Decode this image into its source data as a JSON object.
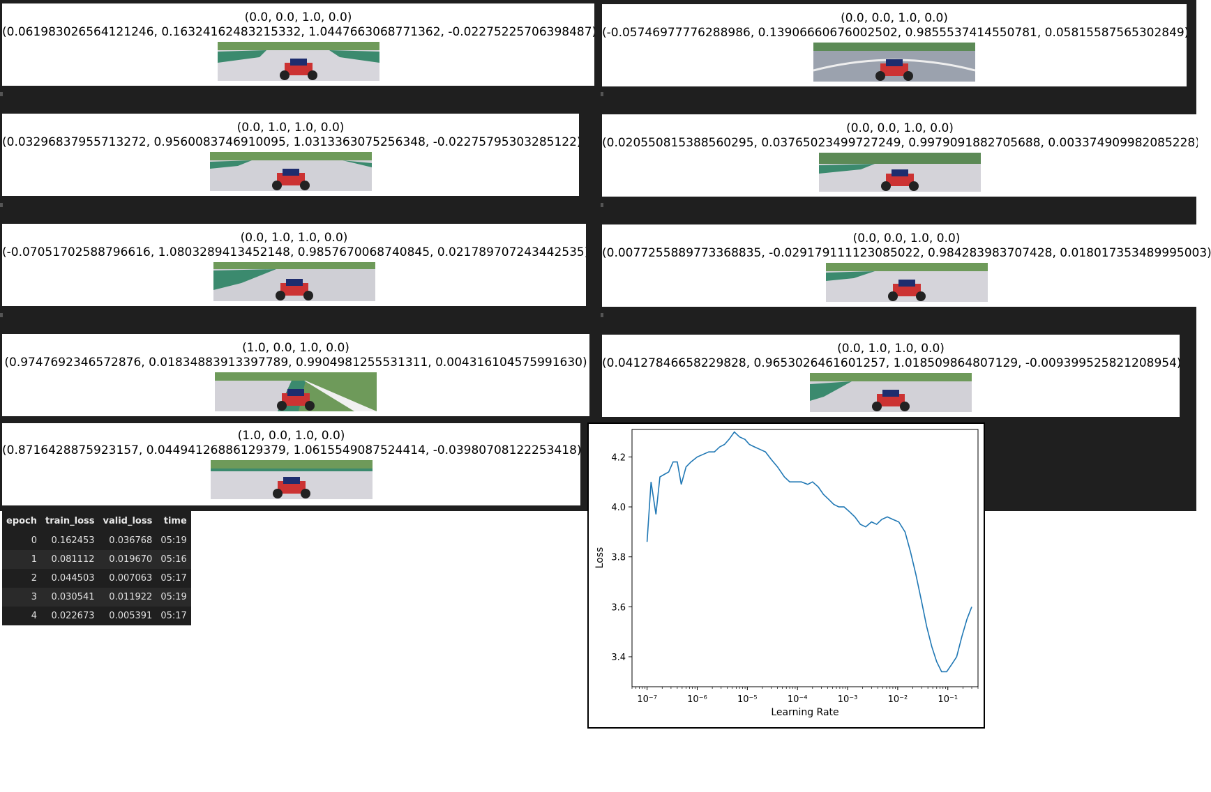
{
  "cells": [
    {
      "action": "(0.0, 0.0, 1.0, 0.0)",
      "pred": "(0.061983026564121246, 0.16324162483215332, 1.0447663068771362, -0.02275225706398487)"
    },
    {
      "action": "(0.0, 0.0, 1.0, 0.0)",
      "pred": "(-0.05746977776288986, 0.13906660676002502, 0.9855537414550781, 0.05815587565302849)"
    },
    {
      "action": "(0.0, 1.0, 1.0, 0.0)",
      "pred": "(0.03296837955713272, 0.9560083746910095, 1.0313363075256348, -0.02275795303285122)"
    },
    {
      "action": "(0.0, 0.0, 1.0, 0.0)",
      "pred": "(0.020550815388560295, 0.03765023499727249, 0.9979091882705688, 0.003374909982085228)"
    },
    {
      "action": "(0.0, 1.0, 1.0, 0.0)",
      "pred": "(-0.07051702588796616, 1.0803289413452148, 0.9857670068740845, 0.021789707243442535)"
    },
    {
      "action": "(0.0, 0.0, 1.0, 0.0)",
      "pred": "(0.0077255889773368835, -0.029179111123085022, 0.984283983707428, 0.018017353489995003)"
    },
    {
      "action": "(1.0, 0.0, 1.0, 0.0)",
      "pred": "(0.9747692346572876, 0.01834883913397789, 0.9904981255531311, 0.004316104575991630)"
    },
    {
      "action": "(0.0, 1.0, 1.0, 0.0)",
      "pred": "(0.04127846658229828, 0.9653026461601257, 1.018509864807129, -0.009399525821208954)"
    },
    {
      "action": "(1.0, 0.0, 1.0, 0.0)",
      "pred": "(0.8716428875923157, 0.04494126886129379, 1.0615549087524414, -0.03980708122253418)"
    }
  ],
  "results": {
    "headers": [
      "epoch",
      "train_loss",
      "valid_loss",
      "time"
    ],
    "rows": [
      [
        "0",
        "0.162453",
        "0.036768",
        "05:19"
      ],
      [
        "1",
        "0.081112",
        "0.019670",
        "05:16"
      ],
      [
        "2",
        "0.044503",
        "0.007063",
        "05:17"
      ],
      [
        "3",
        "0.030541",
        "0.011922",
        "05:19"
      ],
      [
        "4",
        "0.022673",
        "0.005391",
        "05:17"
      ]
    ]
  },
  "chart_data": {
    "type": "line",
    "title": "",
    "xlabel": "Learning Rate",
    "ylabel": "Loss",
    "xscale": "log",
    "xlim": [
      5e-08,
      0.4
    ],
    "ylim": [
      3.28,
      4.31
    ],
    "xticks": [
      "10⁻⁷",
      "10⁻⁶",
      "10⁻⁵",
      "10⁻⁴",
      "10⁻³",
      "10⁻²",
      "10⁻¹"
    ],
    "xtick_values": [
      1e-07,
      1e-06,
      1e-05,
      0.0001,
      0.001,
      0.01,
      0.1
    ],
    "yticks": [
      3.4,
      3.6,
      3.8,
      4.0,
      4.2
    ],
    "grid": false,
    "series": [
      {
        "color": "#1f77b4",
        "points": [
          [
            1e-07,
            3.86
          ],
          [
            1.2e-07,
            4.1
          ],
          [
            1.5e-07,
            3.97
          ],
          [
            1.8e-07,
            4.12
          ],
          [
            2.2e-07,
            4.13
          ],
          [
            2.7e-07,
            4.14
          ],
          [
            3.3e-07,
            4.18
          ],
          [
            4e-07,
            4.18
          ],
          [
            4.8e-07,
            4.09
          ],
          [
            6e-07,
            4.16
          ],
          [
            7.5e-07,
            4.18
          ],
          [
            1e-06,
            4.2
          ],
          [
            1.3e-06,
            4.21
          ],
          [
            1.7e-06,
            4.22
          ],
          [
            2.2e-06,
            4.22
          ],
          [
            2.8e-06,
            4.24
          ],
          [
            3.5e-06,
            4.25
          ],
          [
            4.3e-06,
            4.27
          ],
          [
            5.5e-06,
            4.3
          ],
          [
            7e-06,
            4.28
          ],
          [
            9e-06,
            4.27
          ],
          [
            1.1e-05,
            4.25
          ],
          [
            1.4e-05,
            4.24
          ],
          [
            1.8e-05,
            4.23
          ],
          [
            2.3e-05,
            4.22
          ],
          [
            3e-05,
            4.19
          ],
          [
            4e-05,
            4.16
          ],
          [
            5.5e-05,
            4.12
          ],
          [
            7e-05,
            4.1
          ],
          [
            9e-05,
            4.1
          ],
          [
            0.00012,
            4.1
          ],
          [
            0.00016,
            4.09
          ],
          [
            0.0002,
            4.1
          ],
          [
            0.00026,
            4.08
          ],
          [
            0.00033,
            4.05
          ],
          [
            0.00042,
            4.03
          ],
          [
            0.00053,
            4.01
          ],
          [
            0.00067,
            4.0
          ],
          [
            0.00085,
            4.0
          ],
          [
            0.0011,
            3.98
          ],
          [
            0.0014,
            3.96
          ],
          [
            0.0018,
            3.93
          ],
          [
            0.0023,
            3.92
          ],
          [
            0.003,
            3.94
          ],
          [
            0.0038,
            3.93
          ],
          [
            0.0048,
            3.95
          ],
          [
            0.0062,
            3.96
          ],
          [
            0.008,
            3.95
          ],
          [
            0.0105,
            3.94
          ],
          [
            0.014,
            3.9
          ],
          [
            0.018,
            3.82
          ],
          [
            0.023,
            3.73
          ],
          [
            0.03,
            3.62
          ],
          [
            0.038,
            3.52
          ],
          [
            0.048,
            3.44
          ],
          [
            0.06,
            3.38
          ],
          [
            0.075,
            3.34
          ],
          [
            0.095,
            3.34
          ],
          [
            0.12,
            3.37
          ],
          [
            0.15,
            3.4
          ],
          [
            0.19,
            3.48
          ],
          [
            0.24,
            3.55
          ],
          [
            0.3,
            3.6
          ]
        ]
      }
    ]
  }
}
